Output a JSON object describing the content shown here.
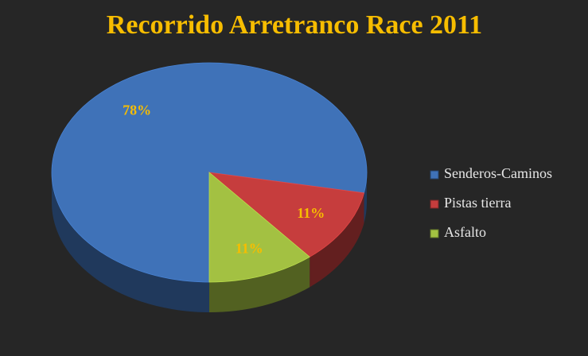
{
  "chart_data": {
    "type": "pie",
    "title": "Recorrido Arretranco Race 2011",
    "categories": [
      "Senderos-Caminos",
      "Pistas tierra",
      "Asfalto"
    ],
    "values": [
      78,
      11,
      11
    ],
    "value_labels": [
      "78%",
      "11%",
      "11%"
    ],
    "colors": [
      "#3f72b8",
      "#c63d3d",
      "#a3c142"
    ],
    "legend": "right"
  }
}
